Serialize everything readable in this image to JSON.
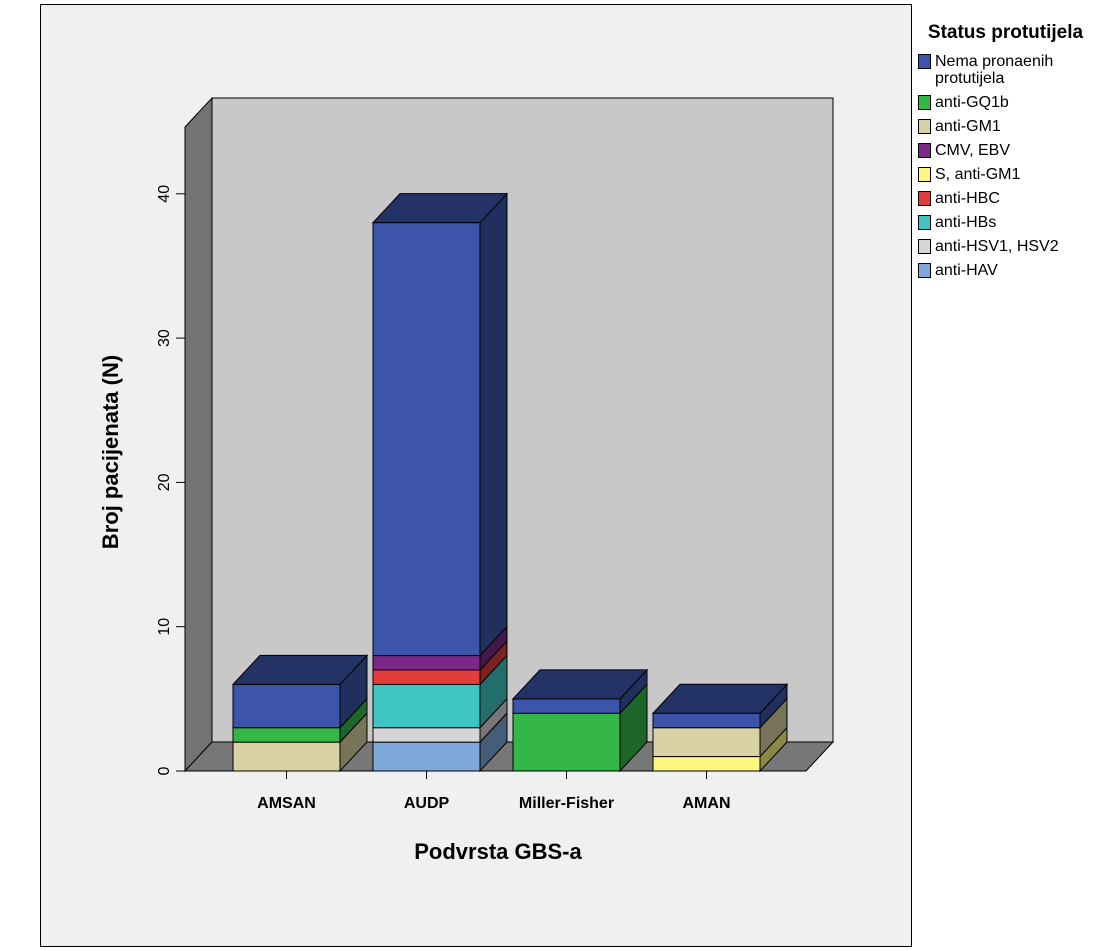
{
  "chart_data": {
    "type": "bar",
    "stacked": true,
    "three_d": true,
    "xlabel": "Podvrsta GBS-a",
    "ylabel": "Broj pacijenata (N)",
    "ylim": [
      0,
      45
    ],
    "yticks": [
      "0",
      "10",
      "20",
      "30",
      "40"
    ],
    "categories": [
      "AMSAN",
      "AUDP",
      "Miller-Fisher",
      "AMAN"
    ],
    "legend_title": "Status protutijela",
    "legend_position": "right",
    "series": [
      {
        "name": "anti-HAV",
        "color": "#7ea9d9",
        "values": [
          0,
          2,
          0,
          0
        ]
      },
      {
        "name": "anti-HSV1, HSV2",
        "color": "#d6d6d6",
        "values": [
          0,
          1,
          0,
          0
        ]
      },
      {
        "name": "anti-HBs",
        "color": "#3fc6c4",
        "values": [
          0,
          3,
          0,
          0
        ]
      },
      {
        "name": "anti-HBC",
        "color": "#e23c3c",
        "values": [
          0,
          1,
          0,
          0
        ]
      },
      {
        "name": "S, anti-GM1",
        "color": "#fdf77f",
        "values": [
          0,
          0,
          0,
          1
        ]
      },
      {
        "name": "CMV, EBV",
        "color": "#7a2a86",
        "values": [
          0,
          1,
          0,
          0
        ]
      },
      {
        "name": "anti-GM1",
        "color": "#d8d2a4",
        "values": [
          2,
          0,
          0,
          2
        ]
      },
      {
        "name": "anti-GQ1b",
        "color": "#35b748",
        "values": [
          1,
          0,
          4,
          0
        ]
      },
      {
        "name": "Nema pronaenih protutijela",
        "color": "#3c55aa",
        "values": [
          3,
          30,
          1,
          1
        ]
      }
    ]
  },
  "legend": {
    "title": "Status protutijela",
    "items": [
      {
        "label": "Nema pronaenih protutijela",
        "color": "#3c55aa"
      },
      {
        "label": "anti-GQ1b",
        "color": "#35b748"
      },
      {
        "label": "anti-GM1",
        "color": "#d8d2a4"
      },
      {
        "label": "CMV, EBV",
        "color": "#7a2a86"
      },
      {
        "label": "S, anti-GM1",
        "color": "#fdf77f"
      },
      {
        "label": "anti-HBC",
        "color": "#e23c3c"
      },
      {
        "label": "anti-HBs",
        "color": "#3fc6c4"
      },
      {
        "label": "anti-HSV1, HSV2",
        "color": "#d6d6d6"
      },
      {
        "label": "anti-HAV",
        "color": "#7ea9d9"
      }
    ]
  }
}
